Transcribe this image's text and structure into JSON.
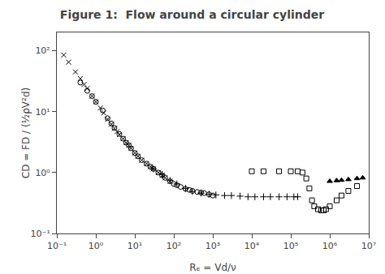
{
  "chart_data": {
    "type": "scatter",
    "title": "Figure 1:  Flow around a circular cylinder",
    "xlabel": "Rₑ = Vd/ν",
    "ylabel": "CD = FD / (½ρV²d)",
    "log": true,
    "grid": false,
    "xlim": [
      0.1,
      10000000.0
    ],
    "ylim": [
      0.1,
      200
    ],
    "xticks": [
      {
        "value": 0.1,
        "label": "10⁻¹"
      },
      {
        "value": 1,
        "label": "10⁰"
      },
      {
        "value": 10,
        "label": "10¹"
      },
      {
        "value": 100,
        "label": "10²"
      },
      {
        "value": 1000,
        "label": "10³"
      },
      {
        "value": 10000,
        "label": "10⁴"
      },
      {
        "value": 100000,
        "label": "10⁵"
      },
      {
        "value": 1000000,
        "label": "10⁶"
      },
      {
        "value": 10000000,
        "label": "10⁷"
      }
    ],
    "yticks": [
      {
        "value": 0.1,
        "label": "10⁻¹"
      },
      {
        "value": 1,
        "label": "10⁰"
      },
      {
        "value": 10,
        "label": "10¹"
      },
      {
        "value": 100,
        "label": "10²"
      }
    ],
    "series": [
      {
        "color": "#000000",
        "marker": "x",
        "x": [
          0.15,
          0.2,
          0.3,
          0.4,
          0.5,
          0.6,
          0.8,
          1.0,
          1.3,
          1.6,
          2.0,
          2.5,
          3.0,
          3.5,
          4.0,
          5.0,
          6.0,
          7.0,
          8.0,
          10.0,
          12.0,
          15.0,
          20.0,
          25.0,
          30.0,
          40.0,
          50.0,
          60.0,
          80.0
        ],
        "values": [
          85,
          65,
          45,
          35,
          28,
          24,
          18,
          14.5,
          11.5,
          9.5,
          7.5,
          6.2,
          5.3,
          4.7,
          4.2,
          3.6,
          3.1,
          2.8,
          2.5,
          2.1,
          1.85,
          1.6,
          1.4,
          1.25,
          1.15,
          1.0,
          0.9,
          0.82,
          0.72
        ]
      },
      {
        "color": "#000000",
        "marker": "circle-open",
        "x": [
          0.4,
          0.6,
          0.8,
          1.0,
          1.5,
          2.0,
          2.5,
          3.0,
          4.0,
          5.0,
          6.0,
          7.0,
          8.0,
          10.0,
          12.0,
          15.0,
          20.0,
          25.0,
          30.0,
          40.0,
          50.0,
          60.0,
          80.0,
          100.0,
          120.0,
          150.0,
          200.0,
          250.0,
          300.0,
          400.0,
          500.0,
          600.0,
          800.0,
          1000.0
        ],
        "values": [
          30,
          22,
          18,
          14.5,
          10.5,
          7.8,
          6.4,
          5.4,
          4.3,
          3.6,
          3.1,
          2.8,
          2.5,
          2.1,
          1.85,
          1.6,
          1.4,
          1.25,
          1.15,
          1.0,
          0.9,
          0.82,
          0.72,
          0.65,
          0.62,
          0.58,
          0.54,
          0.52,
          0.5,
          0.48,
          0.47,
          0.46,
          0.44,
          0.42
        ]
      },
      {
        "color": "#000000",
        "marker": "cross",
        "x": [
          30.0,
          50.0,
          80.0,
          120.0,
          200.0,
          300.0,
          500.0,
          800.0,
          1200.0,
          2000.0,
          3000.0,
          5000.0,
          8000.0,
          12000.0,
          20000.0,
          30000.0,
          50000.0,
          80000.0,
          120000.0,
          150000.0
        ],
        "values": [
          1.15,
          0.93,
          0.74,
          0.65,
          0.55,
          0.49,
          0.46,
          0.44,
          0.43,
          0.42,
          0.42,
          0.41,
          0.4,
          0.4,
          0.4,
          0.4,
          0.4,
          0.4,
          0.4,
          0.4
        ]
      },
      {
        "color": "#000000",
        "marker": "square-open",
        "x": [
          10000,
          20000,
          50000,
          100000,
          150000,
          200000,
          250000,
          300000,
          350000,
          400000,
          500000,
          600000,
          700000,
          800000,
          1000000,
          1500000,
          2000000,
          3000000,
          5000000
        ],
        "values": [
          1.05,
          1.05,
          1.05,
          1.05,
          1.05,
          1.0,
          0.8,
          0.55,
          0.35,
          0.28,
          0.25,
          0.24,
          0.24,
          0.25,
          0.28,
          0.35,
          0.42,
          0.5,
          0.6
        ]
      },
      {
        "color": "#000000",
        "marker": "triangle-up",
        "x": [
          1000000,
          1500000,
          2000000,
          3000000,
          5000000,
          7000000
        ],
        "values": [
          0.72,
          0.74,
          0.75,
          0.77,
          0.8,
          0.82
        ]
      }
    ]
  }
}
